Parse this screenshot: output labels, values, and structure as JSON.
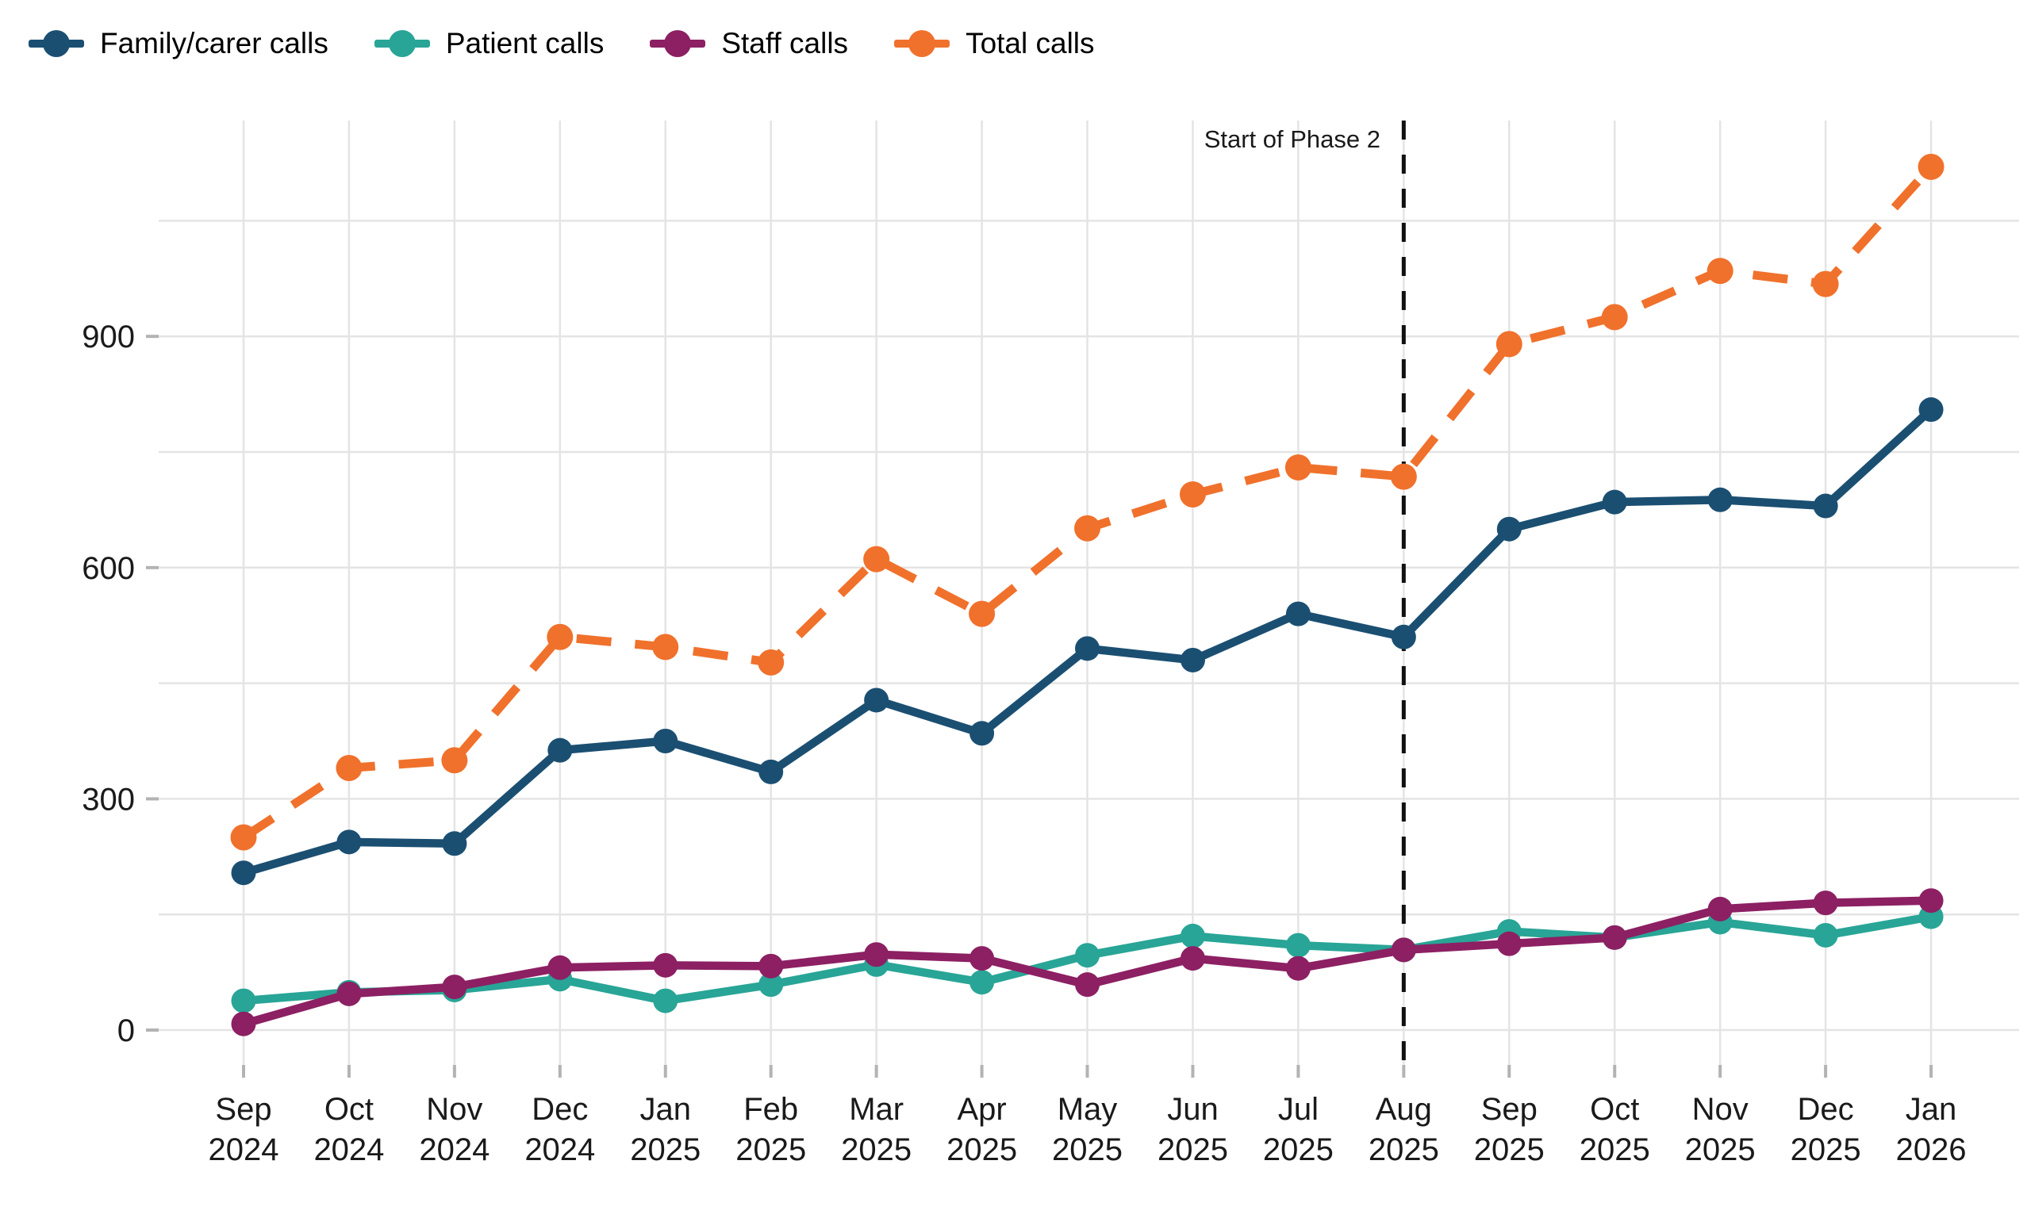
{
  "chart_data": {
    "type": "line",
    "title": "",
    "categories": [
      "Sep 2024",
      "Oct 2024",
      "Nov 2024",
      "Dec 2024",
      "Jan 2025",
      "Feb 2025",
      "Mar 2025",
      "Apr 2025",
      "May 2025",
      "Jun 2025",
      "Jul 2025",
      "Aug 2025",
      "Sep 2025",
      "Oct 2025",
      "Nov 2025",
      "Dec 2025",
      "Jan 2026"
    ],
    "x_tick_month": [
      "Sep",
      "Oct",
      "Nov",
      "Dec",
      "Jan",
      "Feb",
      "Mar",
      "Apr",
      "May",
      "Jun",
      "Jul",
      "Aug",
      "Sep",
      "Oct",
      "Nov",
      "Dec",
      "Jan"
    ],
    "x_tick_year": [
      "2024",
      "2024",
      "2024",
      "2024",
      "2025",
      "2025",
      "2025",
      "2025",
      "2025",
      "2025",
      "2025",
      "2025",
      "2025",
      "2025",
      "2025",
      "2025",
      "2026"
    ],
    "series": [
      {
        "name": "Family/carer calls",
        "color": "#1B4F72",
        "style": "solid",
        "values": [
          204,
          244,
          242,
          363,
          375,
          335,
          428,
          385,
          495,
          480,
          540,
          510,
          650,
          685,
          688,
          680,
          805
        ]
      },
      {
        "name": "Patient calls",
        "color": "#28A596",
        "style": "solid",
        "values": [
          38,
          49,
          52,
          66,
          38,
          59,
          85,
          62,
          97,
          122,
          110,
          104,
          128,
          120,
          140,
          123,
          147
        ]
      },
      {
        "name": "Staff calls",
        "color": "#8C2063",
        "style": "solid",
        "values": [
          8,
          47,
          56,
          81,
          84,
          83,
          98,
          93,
          59,
          93,
          80,
          104,
          112,
          120,
          157,
          165,
          168
        ]
      },
      {
        "name": "Total calls",
        "color": "#F0712C",
        "style": "dashed",
        "values": [
          250,
          340,
          350,
          510,
          497,
          477,
          611,
          540,
          651,
          695,
          730,
          718,
          890,
          925,
          985,
          968,
          1120
        ]
      }
    ],
    "y_ticks": [
      0,
      300,
      600,
      900
    ],
    "y_gridline_step": 150,
    "ylim": [
      0,
      1180
    ],
    "grid": true,
    "legend_position": "top",
    "annotation": {
      "label": "Start of Phase 2",
      "x_category": "Aug 2025",
      "x_index": 11
    }
  }
}
